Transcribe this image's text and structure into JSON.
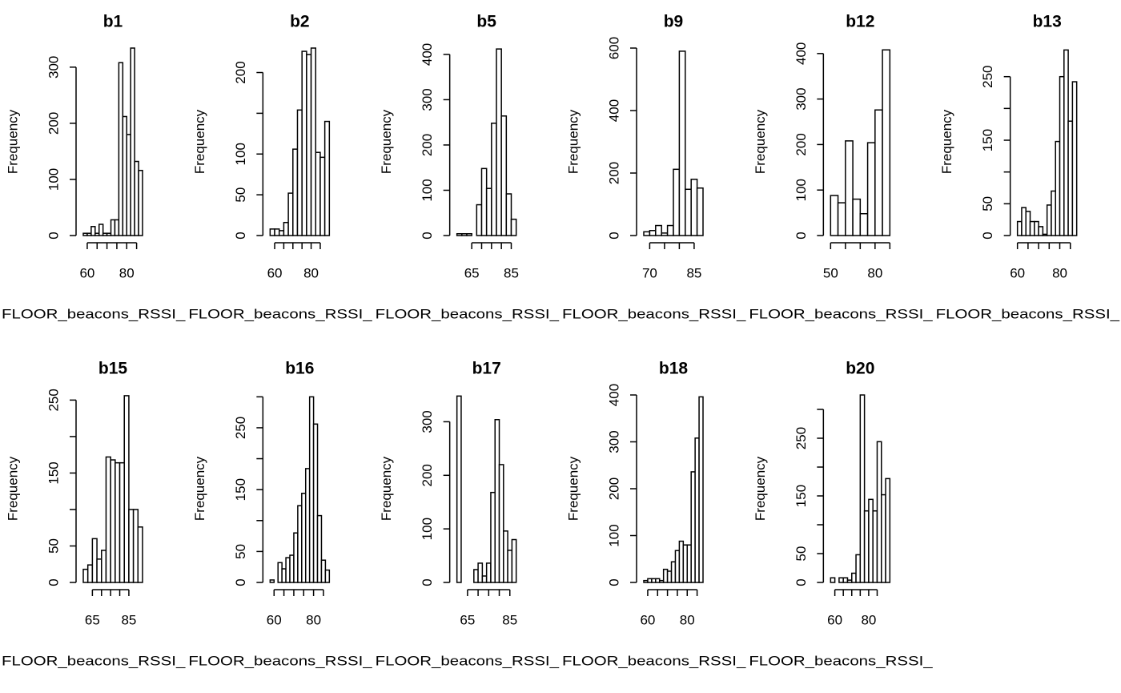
{
  "chart_data": [
    {
      "type": "histogram",
      "title": "b1",
      "xlabel": "FLOOR_beacons_RSSI_",
      "ylabel": "Frequency",
      "color": "#ffffff",
      "bins": [
        58,
        60,
        62,
        64,
        66,
        68,
        70,
        72,
        74,
        76,
        78,
        80,
        82,
        84,
        86,
        88
      ],
      "values": [
        4,
        4,
        16,
        4,
        20,
        4,
        4,
        28,
        28,
        308,
        212,
        180,
        334,
        132,
        116
      ],
      "xlim": [
        58,
        88
      ],
      "ylim": [
        0,
        334
      ],
      "xticks": [
        60,
        80
      ],
      "xticks_minor": [
        65,
        70,
        75,
        85
      ],
      "yticks": [
        0,
        100,
        200,
        300
      ],
      "yticks_minor": []
    },
    {
      "type": "histogram",
      "title": "b2",
      "xlabel": "FLOOR_beacons_RSSI_",
      "ylabel": "Frequency",
      "color": "#ffffff",
      "bins": [
        57.5,
        60,
        62.5,
        65,
        67.5,
        70,
        72.5,
        75,
        77.5,
        80,
        82.5,
        85,
        87.5,
        90
      ],
      "values": [
        8,
        8,
        6,
        16,
        52,
        106,
        154,
        226,
        222,
        230,
        102,
        96,
        140
      ],
      "xlim": [
        57.5,
        90
      ],
      "ylim": [
        0,
        230
      ],
      "xticks": [
        60,
        80
      ],
      "xticks_minor": [
        65,
        70,
        75,
        85
      ],
      "yticks": [
        0,
        50,
        100,
        200
      ],
      "yticks_minor": [
        150
      ]
    },
    {
      "type": "histogram",
      "title": "b5",
      "xlabel": "FLOOR_beacons_RSSI_",
      "ylabel": "Frequency",
      "color": "#ffffff",
      "bins": [
        57.5,
        60,
        62.5,
        65,
        67.5,
        70,
        72.5,
        75,
        77.5,
        80,
        82.5,
        85,
        87.5
      ],
      "values": [
        4,
        4,
        4,
        0,
        68,
        148,
        104,
        248,
        412,
        264,
        92,
        36
      ],
      "xlim": [
        57.5,
        87.5
      ],
      "ylim": [
        0,
        414
      ],
      "xticks": [
        65,
        85
      ],
      "xticks_minor": [
        70,
        75,
        80
      ],
      "yticks": [
        0,
        100,
        200,
        300,
        400
      ],
      "yticks_minor": []
    },
    {
      "type": "histogram",
      "title": "b9",
      "xlabel": "FLOOR_beacons_RSSI_",
      "ylabel": "Frequency",
      "color": "#ffffff",
      "bins": [
        68,
        70,
        72,
        74,
        76,
        78,
        80,
        82,
        84,
        86,
        88
      ],
      "values": [
        12,
        16,
        32,
        8,
        32,
        212,
        590,
        148,
        180,
        152
      ],
      "xlim": [
        68,
        88
      ],
      "ylim": [
        0,
        600
      ],
      "xticks": [
        70,
        85
      ],
      "xticks_minor": [
        75,
        80
      ],
      "yticks": [
        0,
        200,
        400,
        600
      ],
      "yticks_minor": []
    },
    {
      "type": "histogram",
      "title": "b12",
      "xlabel": "FLOOR_beacons_RSSI_",
      "ylabel": "Frequency",
      "color": "#ffffff",
      "bins": [
        50,
        55,
        60,
        65,
        70,
        75,
        80,
        85,
        90
      ],
      "values": [
        88,
        72,
        208,
        80,
        48,
        204,
        276,
        408
      ],
      "xlim": [
        50,
        90
      ],
      "ylim": [
        0,
        412
      ],
      "xticks": [
        50,
        80
      ],
      "xticks_minor": [
        60,
        70,
        90
      ],
      "yticks": [
        0,
        100,
        200,
        300,
        400
      ],
      "yticks_minor": []
    },
    {
      "type": "histogram",
      "title": "b13",
      "xlabel": "FLOOR_beacons_RSSI_",
      "ylabel": "Frequency",
      "color": "#ffffff",
      "bins": [
        60,
        62,
        64,
        66,
        68,
        70,
        72,
        74,
        76,
        78,
        80,
        82,
        84,
        86,
        88
      ],
      "values": [
        22,
        44,
        38,
        22,
        22,
        14,
        2,
        48,
        70,
        148,
        250,
        292,
        180,
        242
      ],
      "xlim": [
        60,
        88
      ],
      "ylim": [
        0,
        295
      ],
      "xticks": [
        60,
        80
      ],
      "xticks_minor": [
        65,
        70,
        75,
        85
      ],
      "yticks": [
        0,
        50,
        150,
        250
      ],
      "yticks_minor": [
        100,
        200
      ]
    },
    {
      "type": "histogram",
      "title": "b15",
      "xlabel": "FLOOR_beacons_RSSI_",
      "ylabel": "Frequency",
      "color": "#ffffff",
      "bins": [
        60,
        62.5,
        65,
        67.5,
        70,
        72.5,
        75,
        77.5,
        80,
        82.5,
        85,
        87.5,
        90,
        92.5
      ],
      "values": [
        18,
        24,
        60,
        32,
        44,
        172,
        168,
        164,
        164,
        256,
        100,
        100,
        76
      ],
      "xlim": [
        60,
        92.5
      ],
      "ylim": [
        0,
        257
      ],
      "xticks": [
        65,
        85
      ],
      "xticks_minor": [
        70,
        75,
        80
      ],
      "yticks": [
        0,
        50,
        150,
        250
      ],
      "yticks_minor": [
        100,
        200
      ]
    },
    {
      "type": "histogram",
      "title": "b16",
      "xlabel": "FLOOR_beacons_RSSI_",
      "ylabel": "Frequency",
      "color": "#ffffff",
      "bins": [
        58,
        60,
        62,
        64,
        66,
        68,
        70,
        72,
        74,
        76,
        78,
        80,
        82,
        84,
        86,
        88
      ],
      "values": [
        4,
        0,
        32,
        22,
        40,
        44,
        80,
        124,
        144,
        184,
        300,
        256,
        108,
        36,
        20
      ],
      "xlim": [
        58,
        88
      ],
      "ylim": [
        0,
        303
      ],
      "xticks": [
        60,
        80
      ],
      "xticks_minor": [
        65,
        70,
        75,
        85
      ],
      "yticks": [
        0,
        50,
        150,
        250
      ],
      "yticks_minor": [
        100,
        200,
        300
      ]
    },
    {
      "type": "histogram",
      "title": "b17",
      "xlabel": "FLOOR_beacons_RSSI_",
      "ylabel": "Frequency",
      "color": "#ffffff",
      "bins": [
        60,
        62,
        64,
        66,
        68,
        70,
        72,
        74,
        76,
        78,
        80,
        82,
        84,
        86,
        88
      ],
      "values": [
        348,
        0,
        0,
        0,
        24,
        36,
        12,
        36,
        168,
        304,
        220,
        96,
        60,
        80
      ],
      "xlim": [
        60,
        88
      ],
      "ylim": [
        0,
        350
      ],
      "xticks": [
        65,
        85
      ],
      "xticks_minor": [
        70,
        75,
        80
      ],
      "yticks": [
        0,
        100,
        200,
        300
      ],
      "yticks_minor": []
    },
    {
      "type": "histogram",
      "title": "b18",
      "xlabel": "FLOOR_beacons_RSSI_",
      "ylabel": "Frequency",
      "color": "#ffffff",
      "bins": [
        58,
        60,
        62,
        64,
        66,
        68,
        70,
        72,
        74,
        76,
        78,
        80,
        82,
        84,
        86,
        88
      ],
      "values": [
        4,
        8,
        8,
        8,
        4,
        28,
        24,
        44,
        68,
        88,
        80,
        80,
        236,
        308,
        396
      ],
      "xlim": [
        58,
        88
      ],
      "ylim": [
        0,
        400
      ],
      "xticks": [
        60,
        80
      ],
      "xticks_minor": [
        65,
        70,
        75,
        85
      ],
      "yticks": [
        0,
        100,
        200,
        300,
        400
      ],
      "yticks_minor": []
    },
    {
      "type": "histogram",
      "title": "b20",
      "xlabel": "FLOOR_beacons_RSSI_",
      "ylabel": "Frequency",
      "color": "#ffffff",
      "bins": [
        57.5,
        60,
        62.5,
        65,
        67.5,
        70,
        72.5,
        75,
        77.5,
        80,
        82.5,
        85,
        87.5,
        90,
        92.5
      ],
      "values": [
        8,
        0,
        8,
        8,
        4,
        16,
        48,
        325,
        124,
        144,
        124,
        244,
        152,
        180
      ],
      "xlim": [
        57.5,
        92.5
      ],
      "ylim": [
        0,
        325
      ],
      "xticks": [
        60,
        80
      ],
      "xticks_minor": [
        65,
        70,
        75,
        85
      ],
      "yticks": [
        0,
        50,
        150,
        250
      ],
      "yticks_minor": [
        100,
        200,
        300
      ]
    }
  ]
}
